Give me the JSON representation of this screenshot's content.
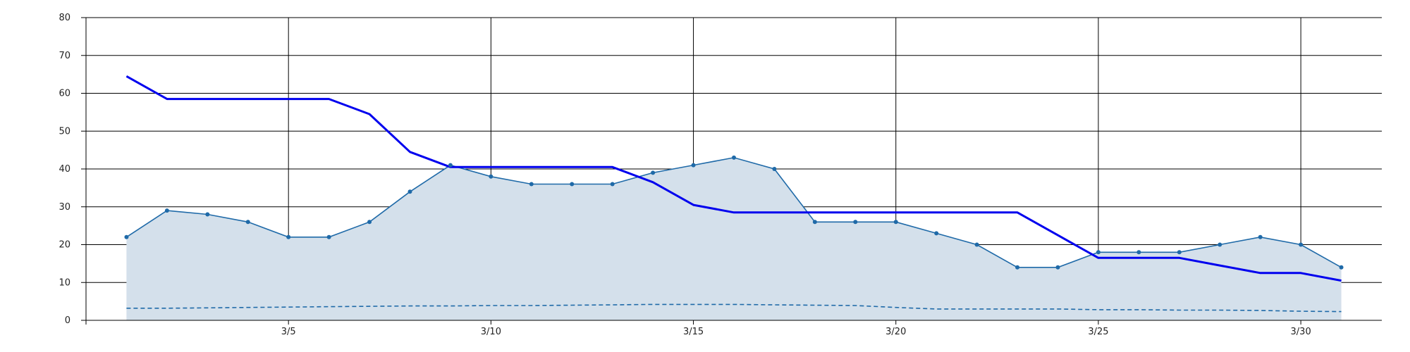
{
  "chart_data": {
    "type": "line",
    "x_tick_labels": [
      "3/5",
      "3/10",
      "3/15",
      "3/20",
      "3/25",
      "3/30"
    ],
    "x_tick_days": [
      5,
      10,
      15,
      20,
      25,
      30
    ],
    "y_tick_labels": [
      "0",
      "10",
      "20",
      "30",
      "40",
      "50",
      "60",
      "70",
      "80"
    ],
    "xlim_days": [
      0,
      32
    ],
    "ylim": [
      0,
      80
    ],
    "grid": true,
    "x": [
      1,
      2,
      3,
      4,
      5,
      6,
      7,
      8,
      9,
      10,
      11,
      12,
      13,
      14,
      15,
      16,
      17,
      18,
      19,
      20,
      21,
      22,
      23,
      24,
      25,
      26,
      27,
      28,
      29,
      30,
      31
    ],
    "series": [
      {
        "style": "area-markers",
        "color": "#1f6aa8",
        "fill": "#d4e0eb",
        "values": [
          22,
          29,
          28,
          26,
          22,
          22,
          26,
          34,
          41,
          38,
          36,
          36,
          36,
          39,
          41,
          43,
          40,
          26,
          26,
          26,
          23,
          20,
          14,
          14,
          18,
          18,
          18,
          20,
          22,
          20,
          14
        ]
      },
      {
        "style": "solid-line",
        "color": "#0000ee",
        "values": [
          64.5,
          58.5,
          58.5,
          58.5,
          58.5,
          58.5,
          54.5,
          44.5,
          40.5,
          40.5,
          40.5,
          40.5,
          40.5,
          36.5,
          30.5,
          28.5,
          28.5,
          28.5,
          28.5,
          28.5,
          28.5,
          28.5,
          28.5,
          22.5,
          16.5,
          16.5,
          16.5,
          14.5,
          12.5,
          12.5,
          10.5
        ]
      },
      {
        "style": "dashed-line",
        "color": "#1f6aa8",
        "values": [
          3.2,
          3.2,
          3.3,
          3.4,
          3.5,
          3.6,
          3.7,
          3.8,
          3.8,
          3.9,
          3.9,
          4.0,
          4.1,
          4.2,
          4.2,
          4.2,
          4.1,
          4.0,
          3.9,
          3.4,
          3.0,
          3.0,
          3.0,
          3.0,
          2.8,
          2.8,
          2.7,
          2.7,
          2.6,
          2.4,
          2.3
        ]
      }
    ]
  }
}
